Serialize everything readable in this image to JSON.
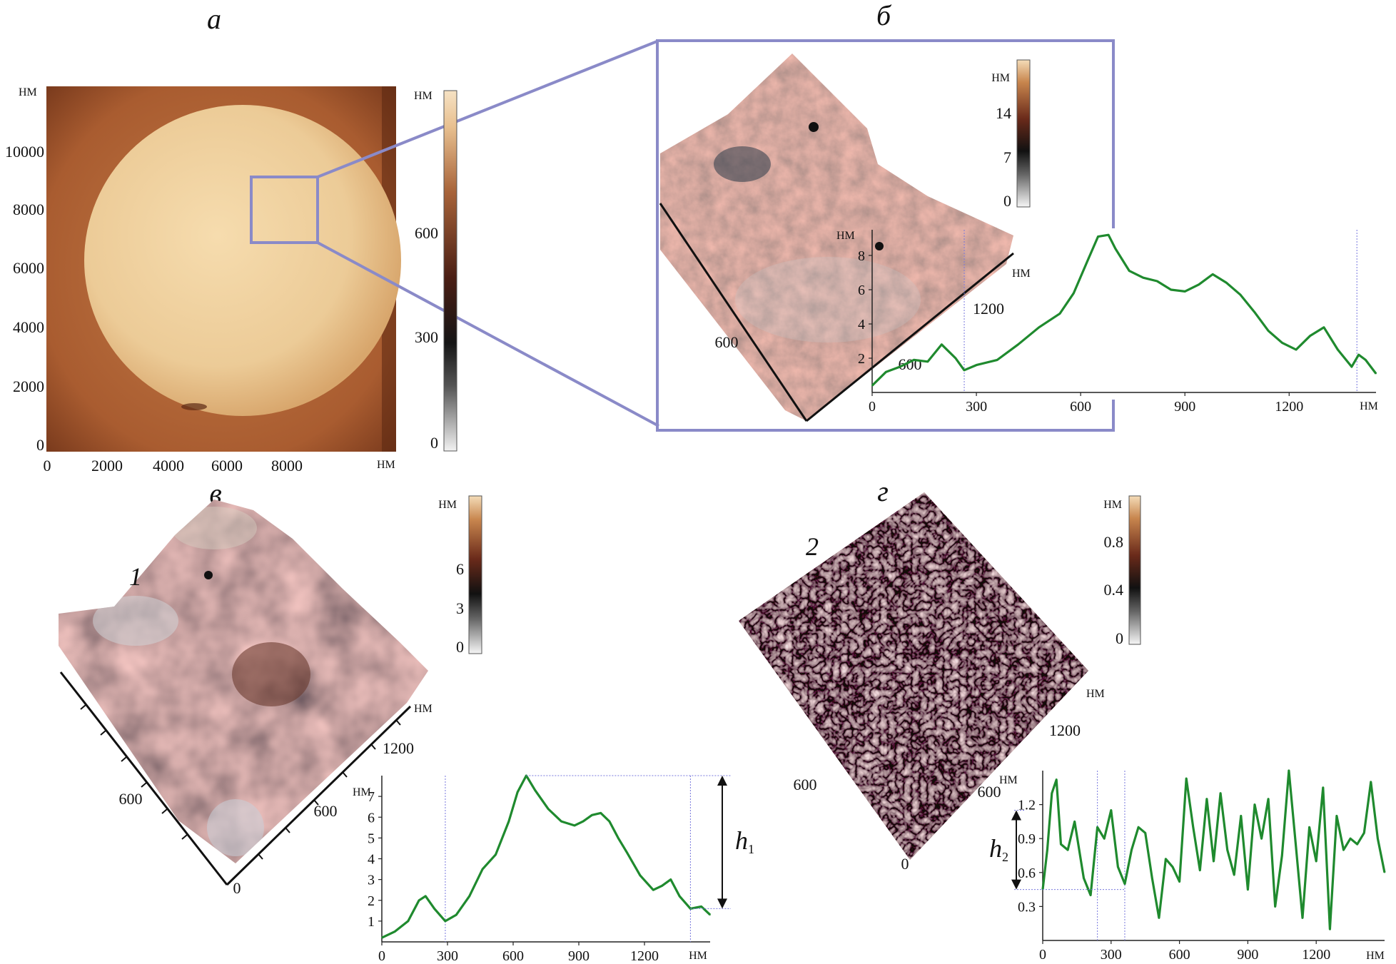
{
  "panels": {
    "a": {
      "letter": "а",
      "unit_y": "НМ",
      "unit_x": "НМ",
      "unit_bar": "НМ",
      "xticks": [
        "0",
        "2000",
        "4000",
        "6000",
        "8000"
      ],
      "yticks": [
        "0",
        "2000",
        "4000",
        "6000",
        "8000",
        "10000"
      ],
      "barticks": [
        "0",
        "300",
        "600"
      ]
    },
    "b": {
      "letter": "б",
      "unit_bar": "НМ",
      "barticks": [
        "0",
        "7",
        "14"
      ],
      "axis_ticks": [
        "600",
        "1200",
        "600"
      ],
      "axis_unit": "НМ"
    },
    "v": {
      "letter": "в",
      "label": "1",
      "unit_bar": "НМ",
      "barticks": [
        "0",
        "3",
        "6"
      ],
      "axis_ticks": [
        "600",
        "1200",
        "600",
        "0"
      ],
      "axis_unit": "НМ"
    },
    "g": {
      "letter": "г",
      "label": "2",
      "unit_bar": "НМ",
      "barticks": [
        "0",
        "0.4",
        "0.8"
      ],
      "axis_ticks": [
        "600",
        "1200",
        "600",
        "0"
      ],
      "axis_unit": "НМ"
    }
  },
  "colors": {
    "frame": "#8a8ac8",
    "profile": "#1f8a2e",
    "guide": "#7777dd"
  },
  "chart_data": [
    {
      "type": "line",
      "id": "profile-b",
      "xlabel": "НМ",
      "ylabel": "НМ",
      "xlim": [
        0,
        1450
      ],
      "ylim": [
        0,
        9.5
      ],
      "xticks": [
        0,
        300,
        600,
        900,
        1200
      ],
      "xtick_labels": [
        "0",
        "300",
        "600",
        "900",
        "1200"
      ],
      "yticks": [
        2,
        4,
        6,
        8
      ],
      "ytick_labels": [
        "2",
        "4",
        "6",
        "8"
      ],
      "guides_x": [
        265,
        1395
      ],
      "x": [
        0,
        40,
        80,
        120,
        160,
        200,
        240,
        265,
        300,
        360,
        420,
        480,
        540,
        580,
        620,
        650,
        680,
        700,
        740,
        780,
        820,
        860,
        900,
        940,
        980,
        1020,
        1060,
        1100,
        1140,
        1180,
        1220,
        1260,
        1300,
        1340,
        1380,
        1400,
        1420,
        1450
      ],
      "y": [
        0.4,
        1.2,
        1.5,
        1.9,
        1.8,
        2.8,
        2.0,
        1.3,
        1.6,
        1.9,
        2.8,
        3.8,
        4.6,
        5.8,
        7.7,
        9.1,
        9.2,
        8.4,
        7.1,
        6.7,
        6.5,
        6.0,
        5.9,
        6.3,
        6.9,
        6.4,
        5.7,
        4.7,
        3.6,
        2.9,
        2.5,
        3.3,
        3.8,
        2.5,
        1.5,
        2.2,
        1.9,
        1.1
      ]
    },
    {
      "type": "line",
      "id": "profile-v",
      "xlabel": "НМ",
      "ylabel": "НМ",
      "xlim": [
        0,
        1500
      ],
      "ylim": [
        0,
        8
      ],
      "xticks": [
        0,
        300,
        600,
        900,
        1200
      ],
      "xtick_labels": [
        "0",
        "300",
        "600",
        "900",
        "1200"
      ],
      "yticks": [
        1,
        2,
        3,
        4,
        5,
        6,
        7
      ],
      "ytick_labels": [
        "1",
        "2",
        "3",
        "4",
        "5",
        "6",
        "7"
      ],
      "guides_x": [
        290,
        1410
      ],
      "annotation": "h1",
      "x": [
        0,
        60,
        120,
        170,
        200,
        240,
        290,
        340,
        400,
        460,
        520,
        580,
        620,
        660,
        700,
        760,
        820,
        880,
        920,
        960,
        1000,
        1040,
        1080,
        1120,
        1180,
        1240,
        1280,
        1320,
        1360,
        1410,
        1460,
        1500
      ],
      "y": [
        0.2,
        0.5,
        1.0,
        2.0,
        2.2,
        1.6,
        1.0,
        1.3,
        2.2,
        3.5,
        4.2,
        5.8,
        7.2,
        8.0,
        7.3,
        6.4,
        5.8,
        5.6,
        5.8,
        6.1,
        6.2,
        5.8,
        5.0,
        4.3,
        3.2,
        2.5,
        2.7,
        3.0,
        2.2,
        1.6,
        1.7,
        1.3
      ]
    },
    {
      "type": "line",
      "id": "profile-g",
      "xlabel": "НМ",
      "ylabel": "НМ",
      "xlim": [
        0,
        1500
      ],
      "ylim": [
        0,
        1.5
      ],
      "xticks": [
        0,
        300,
        600,
        900,
        1200
      ],
      "xtick_labels": [
        "0",
        "300",
        "600",
        "900",
        "1200"
      ],
      "yticks": [
        0.3,
        0.6,
        0.9,
        1.2
      ],
      "ytick_labels": [
        "0.3",
        "0.6",
        "0.9",
        "1.2"
      ],
      "guides_x": [
        240,
        360
      ],
      "annotation": "h2",
      "x": [
        0,
        20,
        40,
        60,
        80,
        110,
        140,
        180,
        210,
        240,
        270,
        300,
        330,
        360,
        390,
        420,
        450,
        480,
        510,
        540,
        570,
        600,
        630,
        660,
        690,
        720,
        750,
        780,
        810,
        840,
        870,
        900,
        930,
        960,
        990,
        1020,
        1050,
        1080,
        1110,
        1140,
        1170,
        1200,
        1230,
        1260,
        1290,
        1320,
        1350,
        1380,
        1410,
        1440,
        1470,
        1500
      ],
      "y": [
        0.45,
        0.8,
        1.3,
        1.42,
        0.85,
        0.8,
        1.05,
        0.55,
        0.4,
        1.0,
        0.9,
        1.15,
        0.65,
        0.5,
        0.8,
        1.0,
        0.95,
        0.55,
        0.2,
        0.72,
        0.65,
        0.52,
        1.43,
        1.0,
        0.62,
        1.25,
        0.7,
        1.3,
        0.8,
        0.58,
        1.1,
        0.45,
        1.2,
        0.9,
        1.25,
        0.3,
        0.75,
        1.5,
        0.85,
        0.2,
        1.0,
        0.7,
        1.35,
        0.1,
        1.1,
        0.8,
        0.9,
        0.85,
        0.95,
        1.4,
        0.9,
        0.6
      ]
    }
  ]
}
